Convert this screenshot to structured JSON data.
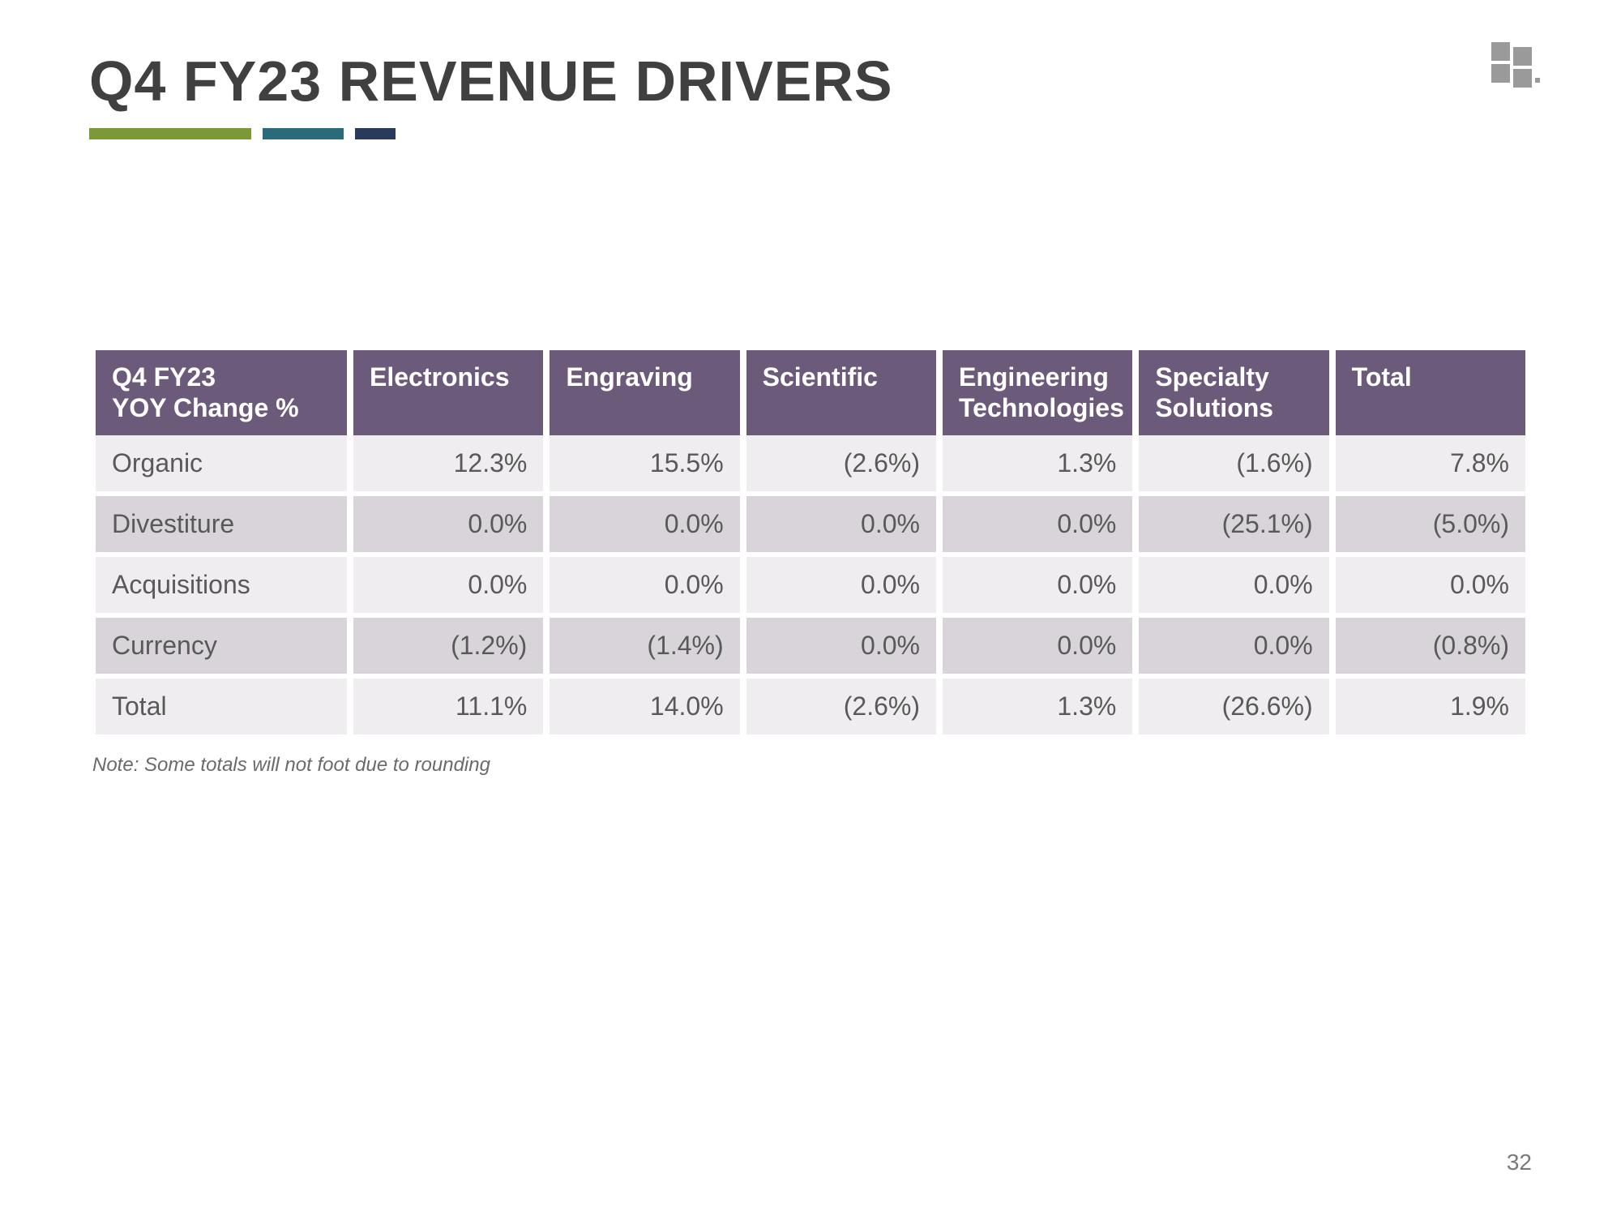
{
  "title": "Q4 FY23 REVENUE DRIVERS",
  "accent_colors": {
    "bar1": "#7a9a3a",
    "bar2": "#2a6a7a",
    "bar3": "#2a3a5a"
  },
  "logo_color": "#9a9a9a",
  "table": {
    "header_bg": "#6b5a7a",
    "header_fg": "#ffffff",
    "row_even_bg": "#efedef",
    "row_odd_bg": "#d8d4da",
    "cell_fg": "#595959",
    "header_fontsize": 32,
    "cell_fontsize": 32,
    "columns": [
      "Q4 FY23\nYOY Change %",
      "Electronics",
      "Engraving",
      "Scientific",
      "Engineering Technologies",
      "Specialty Solutions",
      "Total"
    ],
    "rows": [
      {
        "label": "Organic",
        "cells": [
          "12.3%",
          "15.5%",
          "(2.6%)",
          "1.3%",
          "(1.6%)",
          "7.8%"
        ]
      },
      {
        "label": "Divestiture",
        "cells": [
          "0.0%",
          "0.0%",
          "0.0%",
          "0.0%",
          "(25.1%)",
          "(5.0%)"
        ]
      },
      {
        "label": "Acquisitions",
        "cells": [
          "0.0%",
          "0.0%",
          "0.0%",
          "0.0%",
          "0.0%",
          "0.0%"
        ]
      },
      {
        "label": "Currency",
        "cells": [
          "(1.2%)",
          "(1.4%)",
          "0.0%",
          "0.0%",
          "0.0%",
          "(0.8%)"
        ]
      },
      {
        "label": "Total",
        "cells": [
          "11.1%",
          "14.0%",
          "(2.6%)",
          "1.3%",
          "(26.6%)",
          "1.9%"
        ]
      }
    ]
  },
  "footnote": "Note: Some totals will not foot due to rounding",
  "page_number": "32"
}
